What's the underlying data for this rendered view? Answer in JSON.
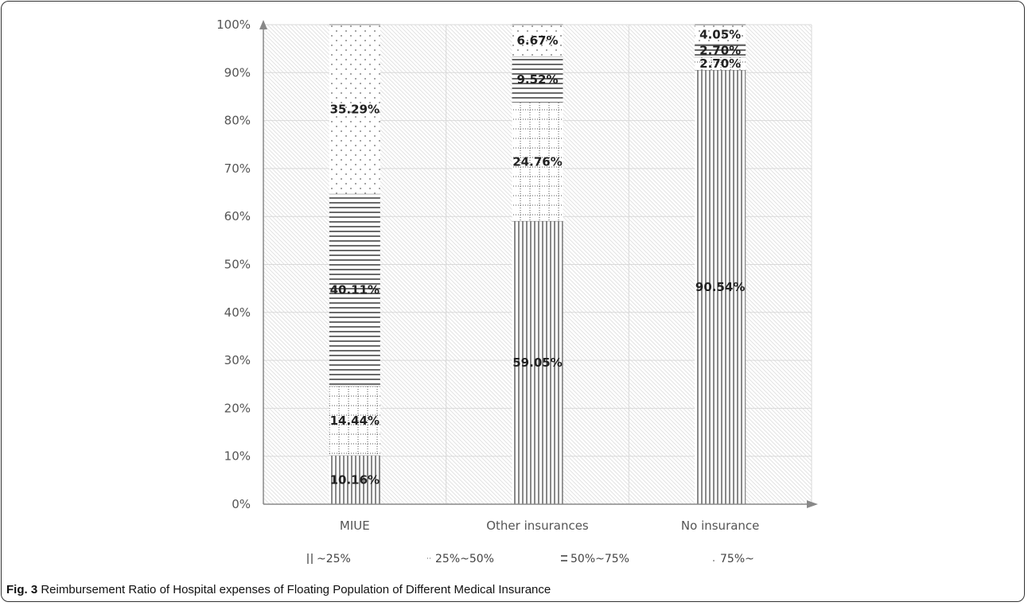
{
  "caption": {
    "label": "Fig. 3",
    "text": "Reimbursement Ratio of Hospital expenses of Floating Population of Different Medical Insurance"
  },
  "chart_data": {
    "type": "bar",
    "stacked": true,
    "categories": [
      "MIUE",
      "Other insurances",
      "No insurance"
    ],
    "series": [
      {
        "name": "~25%",
        "values": [
          10.16,
          59.05,
          90.54
        ],
        "labels": [
          "10.16%",
          "59.05%",
          "90.54%"
        ]
      },
      {
        "name": "25%~50%",
        "values": [
          14.44,
          24.76,
          2.7
        ],
        "labels": [
          "14.44%",
          "24.76%",
          "2.70%"
        ]
      },
      {
        "name": "50%~75%",
        "values": [
          40.11,
          9.52,
          2.7
        ],
        "labels": [
          "40.11%",
          "9.52%",
          "2.70%"
        ]
      },
      {
        "name": "75%~",
        "values": [
          35.29,
          6.67,
          4.05
        ],
        "labels": [
          "35.29%",
          "6.67%",
          "4.05%"
        ]
      }
    ],
    "yticks": [
      "0%",
      "10%",
      "20%",
      "30%",
      "40%",
      "50%",
      "60%",
      "70%",
      "80%",
      "90%",
      "100%"
    ],
    "ylim": [
      0,
      100
    ],
    "grid": true,
    "legend_position": "bottom"
  }
}
